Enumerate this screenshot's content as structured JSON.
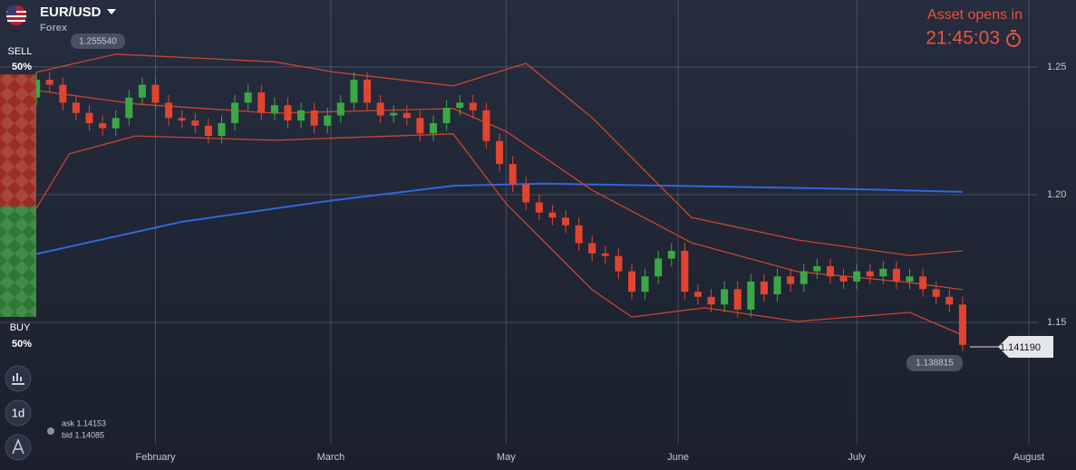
{
  "header": {
    "asset": "EUR/USD",
    "market": "Forex"
  },
  "timer": {
    "caption": "Asset opens in",
    "time": "21:45:03"
  },
  "sell": {
    "label": "SELL",
    "share": "50%"
  },
  "buy": {
    "label": "BUY",
    "share": "50%"
  },
  "toolbar": {
    "interval": "1d"
  },
  "quote": {
    "ask": "ask 1.14153",
    "bid": "bid 1.14085"
  },
  "chart_data": {
    "type": "candlestick",
    "high_label": "1.255540",
    "low_label": "1.138815",
    "current_price_label": "1.141190",
    "up_color": "#3aa845",
    "down_color": "#e2442f",
    "grid": true,
    "xlim": [
      -5.5,
      150.7
    ],
    "ylim": [
      1.1025,
      1.2762
    ],
    "xticks": [
      {
        "value": 18,
        "label": "February"
      },
      {
        "value": 44.5,
        "label": "March"
      },
      {
        "value": 71,
        "label": "May"
      },
      {
        "value": 97,
        "label": "June"
      },
      {
        "value": 124,
        "label": "July"
      },
      {
        "value": 150,
        "label": "August"
      }
    ],
    "yticks": [
      1.15,
      {
        "value": 1.2,
        "label": "1.20"
      },
      1.25
    ],
    "x": [
      0,
      2,
      4,
      6,
      8,
      10,
      12,
      14,
      16,
      18,
      20,
      22,
      24,
      26,
      28,
      30,
      32,
      34,
      36,
      38,
      40,
      42,
      44,
      46,
      48,
      50,
      52,
      54,
      56,
      58,
      60,
      62,
      64,
      66,
      68,
      70,
      72,
      74,
      76,
      78,
      80,
      82,
      84,
      86,
      88,
      90,
      92,
      94,
      96,
      98,
      100,
      102,
      104,
      106,
      108,
      110,
      112,
      114,
      116,
      118,
      120,
      122,
      124,
      126,
      128,
      130,
      132,
      134,
      136,
      138,
      140
    ],
    "open": [
      1.238,
      1.245,
      1.243,
      1.236,
      1.232,
      1.228,
      1.226,
      1.23,
      1.238,
      1.243,
      1.236,
      1.23,
      1.229,
      1.227,
      1.223,
      1.228,
      1.236,
      1.24,
      1.232,
      1.235,
      1.229,
      1.233,
      1.227,
      1.231,
      1.236,
      1.245,
      1.236,
      1.231,
      1.232,
      1.23,
      1.224,
      1.228,
      1.234,
      1.236,
      1.233,
      1.221,
      1.212,
      1.204,
      1.197,
      1.193,
      1.191,
      1.188,
      1.181,
      1.177,
      1.176,
      1.17,
      1.162,
      1.168,
      1.175,
      1.178,
      1.162,
      1.16,
      1.157,
      1.163,
      1.155,
      1.166,
      1.161,
      1.168,
      1.165,
      1.17,
      1.172,
      1.168,
      1.166,
      1.17,
      1.168,
      1.171,
      1.166,
      1.168,
      1.163,
      1.16,
      1.157
    ],
    "high": [
      1.248,
      1.248,
      1.246,
      1.239,
      1.235,
      1.231,
      1.233,
      1.241,
      1.246,
      1.246,
      1.239,
      1.233,
      1.232,
      1.23,
      1.231,
      1.239,
      1.243,
      1.243,
      1.238,
      1.238,
      1.236,
      1.236,
      1.234,
      1.239,
      1.248,
      1.248,
      1.239,
      1.235,
      1.235,
      1.233,
      1.231,
      1.237,
      1.239,
      1.239,
      1.236,
      1.224,
      1.215,
      1.207,
      1.2,
      1.196,
      1.194,
      1.191,
      1.184,
      1.18,
      1.179,
      1.173,
      1.171,
      1.178,
      1.181,
      1.181,
      1.165,
      1.163,
      1.166,
      1.166,
      1.169,
      1.169,
      1.171,
      1.171,
      1.173,
      1.175,
      1.175,
      1.171,
      1.173,
      1.173,
      1.174,
      1.174,
      1.171,
      1.171,
      1.166,
      1.163,
      1.16
    ],
    "low": [
      1.235,
      1.24,
      1.233,
      1.229,
      1.225,
      1.223,
      1.223,
      1.227,
      1.235,
      1.233,
      1.227,
      1.226,
      1.224,
      1.22,
      1.22,
      1.225,
      1.233,
      1.229,
      1.229,
      1.226,
      1.226,
      1.224,
      1.224,
      1.228,
      1.233,
      1.233,
      1.228,
      1.228,
      1.227,
      1.221,
      1.221,
      1.225,
      1.231,
      1.23,
      1.218,
      1.209,
      1.201,
      1.194,
      1.19,
      1.188,
      1.185,
      1.178,
      1.174,
      1.173,
      1.167,
      1.159,
      1.159,
      1.165,
      1.172,
      1.159,
      1.157,
      1.154,
      1.154,
      1.152,
      1.152,
      1.158,
      1.158,
      1.162,
      1.162,
      1.167,
      1.165,
      1.163,
      1.163,
      1.165,
      1.165,
      1.163,
      1.163,
      1.16,
      1.157,
      1.154,
      1.1388
    ],
    "close": [
      1.245,
      1.243,
      1.236,
      1.232,
      1.228,
      1.226,
      1.23,
      1.238,
      1.243,
      1.236,
      1.23,
      1.229,
      1.227,
      1.223,
      1.228,
      1.236,
      1.24,
      1.232,
      1.235,
      1.229,
      1.233,
      1.227,
      1.231,
      1.236,
      1.245,
      1.236,
      1.231,
      1.232,
      1.23,
      1.224,
      1.228,
      1.234,
      1.236,
      1.233,
      1.221,
      1.212,
      1.204,
      1.197,
      1.193,
      1.191,
      1.188,
      1.181,
      1.177,
      1.176,
      1.17,
      1.162,
      1.168,
      1.175,
      1.178,
      1.162,
      1.16,
      1.157,
      1.163,
      1.155,
      1.166,
      1.161,
      1.168,
      1.165,
      1.17,
      1.172,
      1.168,
      1.166,
      1.17,
      1.168,
      1.171,
      1.166,
      1.168,
      1.163,
      1.16,
      1.157,
      1.1412
    ],
    "lines": [
      {
        "color": "#2f66e0",
        "x": [
          -1,
          22,
          44,
          63,
          77,
          118,
          140
        ],
        "values": [
          1.1762,
          1.1894,
          1.1975,
          1.2035,
          1.2043,
          1.2025,
          1.2011
        ]
      },
      {
        "color": "#c9452f",
        "x": [
          0,
          12,
          36,
          45,
          63,
          74,
          84,
          99,
          115,
          132,
          140
        ],
        "values": [
          1.2479,
          1.255,
          1.252,
          1.248,
          1.2426,
          1.2514,
          1.2301,
          1.1911,
          1.1823,
          1.1762,
          1.178
        ]
      },
      {
        "color": "#c9452f",
        "x": [
          0,
          15,
          36,
          63,
          71,
          84,
          99,
          115,
          132,
          140
        ],
        "values": [
          1.2408,
          1.2355,
          1.2319,
          1.2337,
          1.2248,
          1.2018,
          1.1812,
          1.1699,
          1.1656,
          1.1628
        ]
      },
      {
        "color": "#c9452f",
        "x": [
          0,
          5,
          15,
          36,
          63,
          71,
          84,
          90,
          101,
          115,
          132,
          140
        ],
        "values": [
          1.1947,
          1.216,
          1.223,
          1.2213,
          1.2238,
          1.1965,
          1.1628,
          1.1521,
          1.1557,
          1.1504,
          1.1539,
          1.145
        ]
      }
    ]
  }
}
